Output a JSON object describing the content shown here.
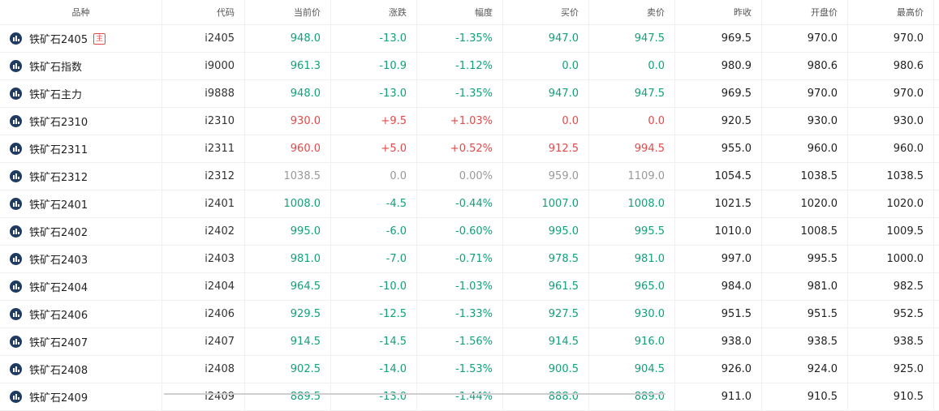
{
  "headers": [
    "品种",
    "代码",
    "当前价",
    "涨跌",
    "幅度",
    "买价",
    "卖价",
    "昨收",
    "开盘价",
    "最高价"
  ],
  "main_badge": "主",
  "rows": [
    {
      "name": "铁矿石2405",
      "code": "i2405",
      "price": "948.0",
      "chg": "-13.0",
      "pct": "-1.35%",
      "bid": "947.0",
      "ask": "947.5",
      "prev": "969.5",
      "open": "970.0",
      "high": "970.0",
      "trend": "down",
      "badge": true
    },
    {
      "name": "铁矿石指数",
      "code": "i9000",
      "price": "961.3",
      "chg": "-10.9",
      "pct": "-1.12%",
      "bid": "0.0",
      "ask": "0.0",
      "prev": "980.9",
      "open": "980.6",
      "high": "980.6",
      "trend": "down"
    },
    {
      "name": "铁矿石主力",
      "code": "i9888",
      "price": "948.0",
      "chg": "-13.0",
      "pct": "-1.35%",
      "bid": "947.0",
      "ask": "947.5",
      "prev": "969.5",
      "open": "970.0",
      "high": "970.0",
      "trend": "down"
    },
    {
      "name": "铁矿石2310",
      "code": "i2310",
      "price": "930.0",
      "chg": "+9.5",
      "pct": "+1.03%",
      "bid": "0.0",
      "ask": "0.0",
      "prev": "920.5",
      "open": "930.0",
      "high": "930.0",
      "trend": "up"
    },
    {
      "name": "铁矿石2311",
      "code": "i2311",
      "price": "960.0",
      "chg": "+5.0",
      "pct": "+0.52%",
      "bid": "912.5",
      "ask": "994.5",
      "prev": "955.0",
      "open": "960.0",
      "high": "960.0",
      "trend": "up"
    },
    {
      "name": "铁矿石2312",
      "code": "i2312",
      "price": "1038.5",
      "chg": "0.0",
      "pct": "0.00%",
      "bid": "959.0",
      "ask": "1109.0",
      "prev": "1054.5",
      "open": "1038.5",
      "high": "1038.5",
      "trend": "flat"
    },
    {
      "name": "铁矿石2401",
      "code": "i2401",
      "price": "1008.0",
      "chg": "-4.5",
      "pct": "-0.44%",
      "bid": "1007.0",
      "ask": "1008.0",
      "prev": "1021.5",
      "open": "1020.0",
      "high": "1020.0",
      "trend": "down"
    },
    {
      "name": "铁矿石2402",
      "code": "i2402",
      "price": "995.0",
      "chg": "-6.0",
      "pct": "-0.60%",
      "bid": "995.0",
      "ask": "995.5",
      "prev": "1010.0",
      "open": "1008.5",
      "high": "1009.5",
      "trend": "down"
    },
    {
      "name": "铁矿石2403",
      "code": "i2403",
      "price": "981.0",
      "chg": "-7.0",
      "pct": "-0.71%",
      "bid": "978.5",
      "ask": "981.0",
      "prev": "997.0",
      "open": "995.5",
      "high": "1000.0",
      "trend": "down"
    },
    {
      "name": "铁矿石2404",
      "code": "i2404",
      "price": "964.5",
      "chg": "-10.0",
      "pct": "-1.03%",
      "bid": "961.5",
      "ask": "965.0",
      "prev": "984.0",
      "open": "981.0",
      "high": "982.5",
      "trend": "down"
    },
    {
      "name": "铁矿石2406",
      "code": "i2406",
      "price": "929.5",
      "chg": "-12.5",
      "pct": "-1.33%",
      "bid": "927.5",
      "ask": "930.0",
      "prev": "951.5",
      "open": "951.5",
      "high": "952.5",
      "trend": "down"
    },
    {
      "name": "铁矿石2407",
      "code": "i2407",
      "price": "914.5",
      "chg": "-14.5",
      "pct": "-1.56%",
      "bid": "914.5",
      "ask": "916.0",
      "prev": "938.0",
      "open": "938.5",
      "high": "938.5",
      "trend": "down"
    },
    {
      "name": "铁矿石2408",
      "code": "i2408",
      "price": "902.5",
      "chg": "-14.0",
      "pct": "-1.53%",
      "bid": "900.5",
      "ask": "904.5",
      "prev": "926.0",
      "open": "924.0",
      "high": "925.0",
      "trend": "down"
    },
    {
      "name": "铁矿石2409",
      "code": "i2409",
      "price": "889.5",
      "chg": "-13.0",
      "pct": "-1.44%",
      "bid": "888.0",
      "ask": "889.0",
      "prev": "911.0",
      "open": "910.5",
      "high": "910.5",
      "trend": "down"
    }
  ],
  "colors": {
    "up": "#e14a4a",
    "down": "#13a07a",
    "flat": "#999999",
    "icon": "#1f3b63"
  },
  "icon": "chart-bar-icon"
}
